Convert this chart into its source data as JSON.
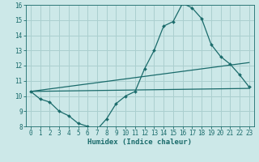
{
  "xlabel": "Humidex (Indice chaleur)",
  "ylabel": "",
  "bg_color": "#cce8e8",
  "grid_color": "#aacfcf",
  "line_color": "#1a6b6b",
  "xlim": [
    -0.5,
    23.5
  ],
  "ylim": [
    8,
    16
  ],
  "yticks": [
    8,
    9,
    10,
    11,
    12,
    13,
    14,
    15,
    16
  ],
  "xticks": [
    0,
    1,
    2,
    3,
    4,
    5,
    6,
    7,
    8,
    9,
    10,
    11,
    12,
    13,
    14,
    15,
    16,
    17,
    18,
    19,
    20,
    21,
    22,
    23
  ],
  "curve1_x": [
    0,
    1,
    2,
    3,
    4,
    5,
    6,
    7,
    8,
    9,
    10,
    11,
    12,
    13,
    14,
    15,
    16,
    17,
    18,
    19,
    20,
    21,
    22,
    23
  ],
  "curve1_y": [
    10.3,
    9.8,
    9.6,
    9.0,
    8.7,
    8.2,
    8.0,
    7.8,
    8.5,
    9.5,
    10.0,
    10.3,
    11.8,
    13.0,
    14.6,
    14.9,
    16.1,
    15.8,
    15.1,
    13.4,
    12.6,
    12.1,
    11.4,
    10.6
  ],
  "curve2_x": [
    0,
    23
  ],
  "curve2_y": [
    10.3,
    10.5
  ],
  "curve3_x": [
    0,
    23
  ],
  "curve3_y": [
    10.3,
    12.2
  ]
}
